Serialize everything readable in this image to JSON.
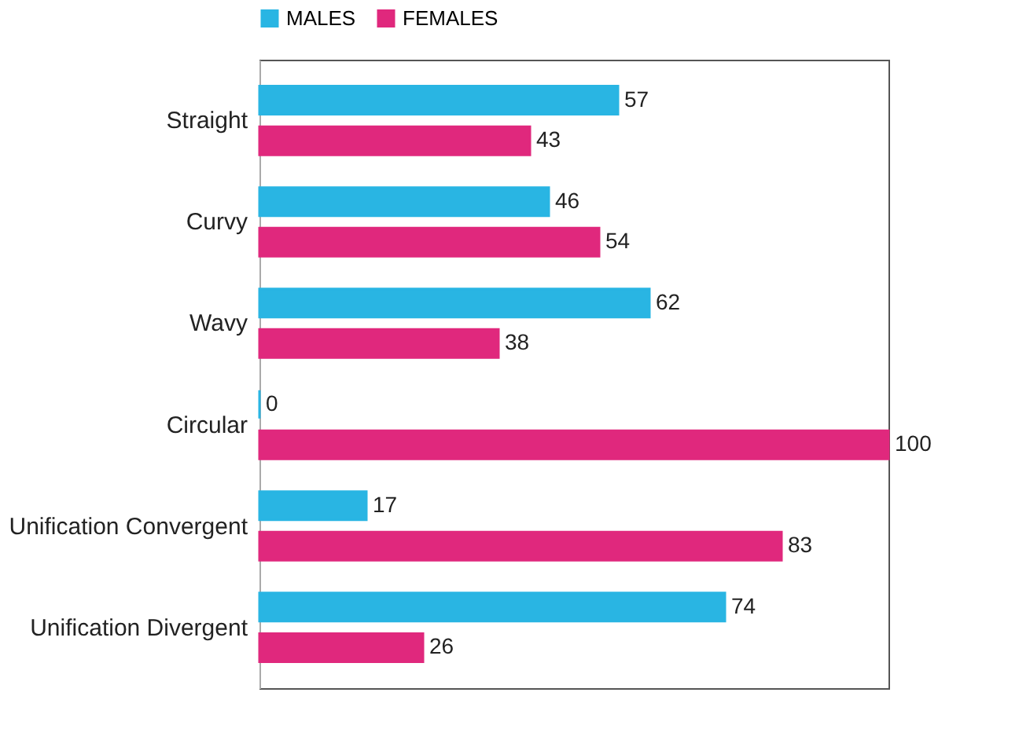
{
  "chart_data": {
    "type": "bar",
    "orientation": "horizontal",
    "data_labels": true,
    "legend": "top",
    "categories": [
      "Straight",
      "Curvy",
      "Wavy",
      "Circular",
      "Unification Convergent",
      "Unification Divergent"
    ],
    "series": [
      {
        "name": "MALES",
        "color": "#29b5e3",
        "values": [
          57,
          46,
          62,
          0,
          17,
          74
        ]
      },
      {
        "name": "FEMALES",
        "color": "#e0287d",
        "values": [
          43,
          54,
          38,
          100,
          83,
          26
        ]
      }
    ]
  }
}
